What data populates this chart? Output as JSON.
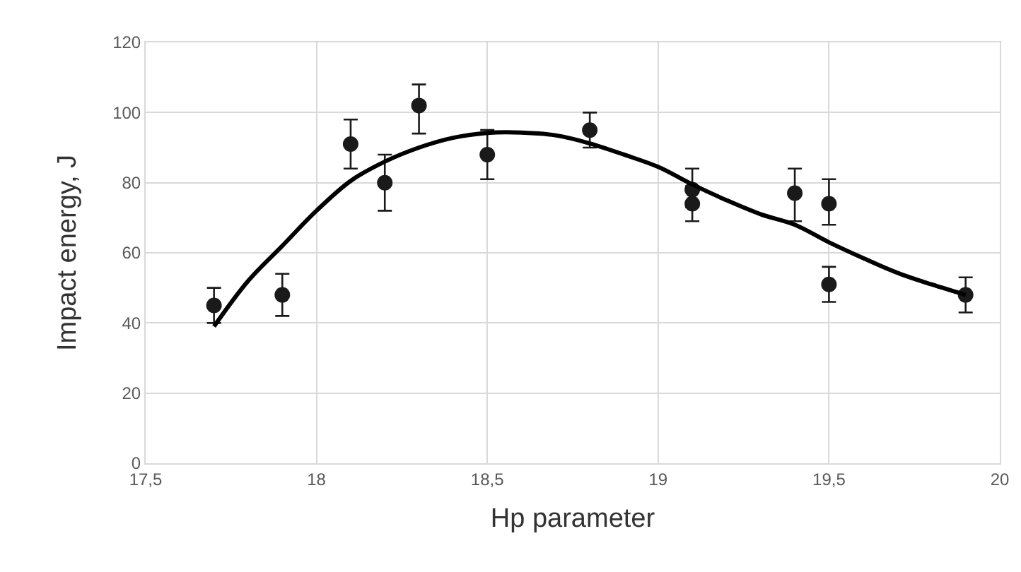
{
  "chart_data": {
    "type": "scatter",
    "xlabel": "Hp parameter",
    "ylabel": "Impact energy, J",
    "xlim": [
      17.5,
      20
    ],
    "xticks": [
      {
        "value": 17.5,
        "label": "17,5"
      },
      18,
      {
        "value": 18.5,
        "label": "18,5"
      },
      19,
      {
        "value": 19.5,
        "label": "19,5"
      },
      20
    ],
    "ylim": [
      0,
      120
    ],
    "yticks": [
      0,
      20,
      40,
      60,
      80,
      100,
      120
    ],
    "grid": true,
    "series": [
      {
        "color": "#1a1a1a",
        "marker": "circle",
        "x": [
          17.7,
          17.9,
          18.1,
          18.2,
          18.3,
          18.5,
          18.8,
          19.1,
          19.1,
          19.4,
          19.5,
          19.5,
          19.9
        ],
        "values": [
          45,
          48,
          91,
          80,
          102,
          88,
          95,
          78,
          74,
          77,
          74,
          51,
          48
        ],
        "errors": [
          [
            40,
            50
          ],
          [
            42,
            54
          ],
          [
            84,
            98
          ],
          [
            72,
            88
          ],
          [
            94,
            108
          ],
          [
            81,
            95
          ],
          [
            90,
            100
          ],
          [
            73,
            84
          ],
          [
            69,
            79
          ],
          [
            69,
            84
          ],
          [
            68,
            81
          ],
          [
            46,
            56
          ],
          [
            43,
            53
          ]
        ]
      },
      {
        "type": "line",
        "color": "#000000",
        "marker": "none",
        "line_style": "solid",
        "x": [
          17.7,
          17.8,
          17.9,
          18.0,
          18.1,
          18.2,
          18.3,
          18.4,
          18.5,
          18.6,
          18.7,
          18.8,
          18.9,
          19.0,
          19.1,
          19.2,
          19.3,
          19.4,
          19.5,
          19.6,
          19.7,
          19.8,
          19.9
        ],
        "values": [
          39,
          52,
          62,
          72,
          80.5,
          86,
          90,
          92.8,
          94.2,
          94.3,
          93.5,
          91.2,
          88,
          84.5,
          79.5,
          75,
          71,
          68,
          63,
          58.5,
          54.3,
          51,
          48
        ]
      }
    ]
  }
}
